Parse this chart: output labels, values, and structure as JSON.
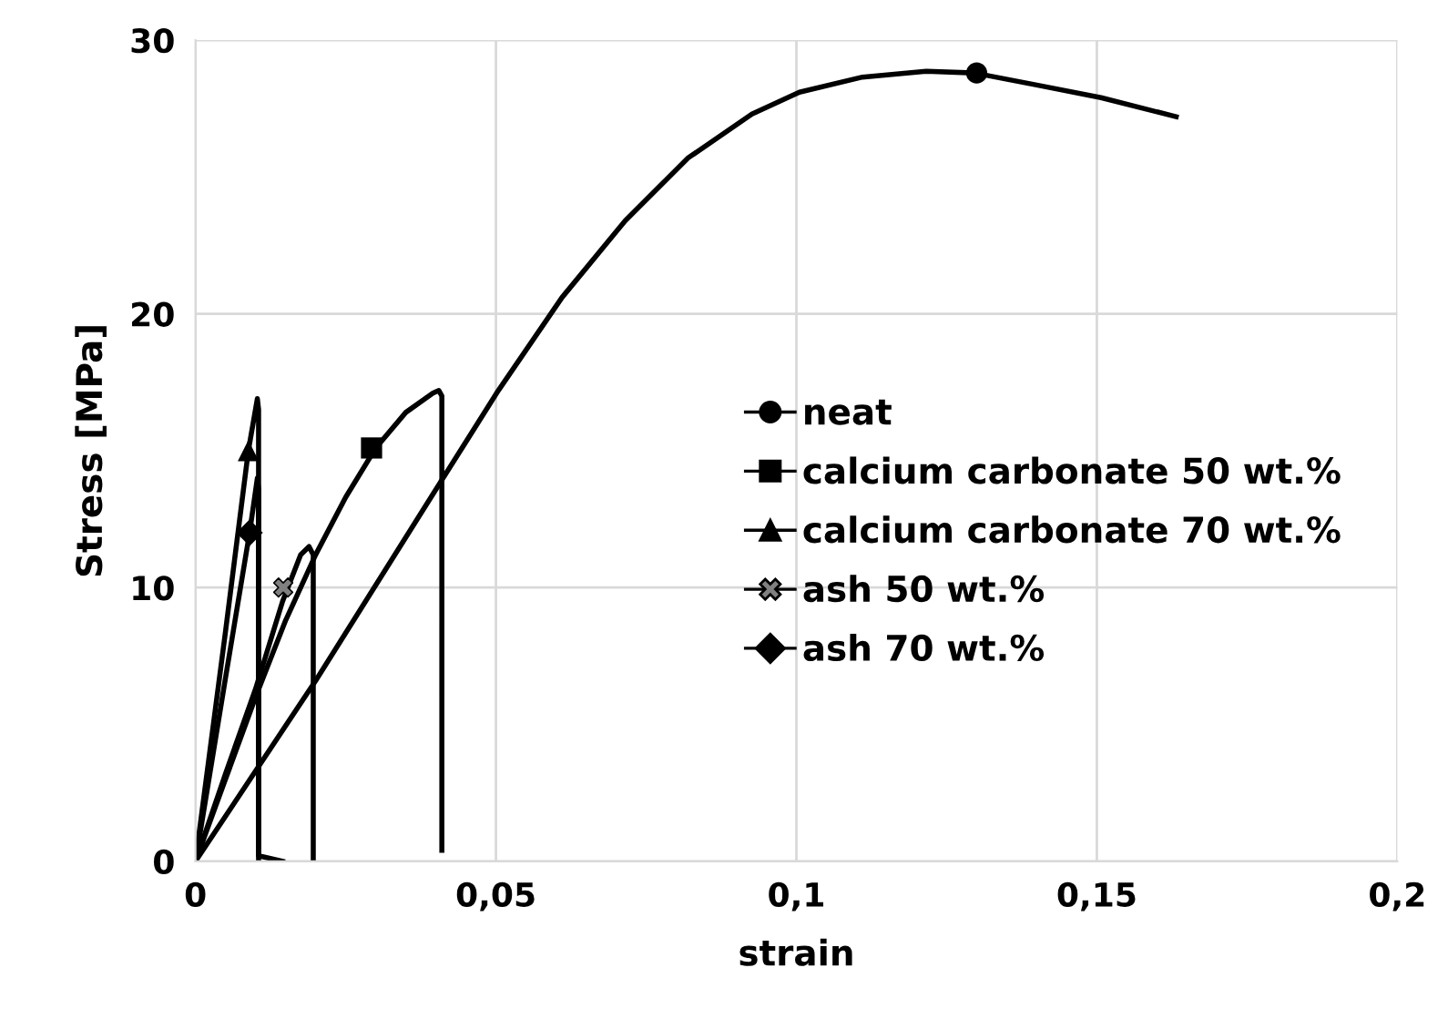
{
  "chart_data": {
    "type": "line",
    "xlabel": "strain",
    "ylabel": "Stress [MPa]",
    "xlim": [
      0,
      0.2
    ],
    "ylim": [
      0,
      30
    ],
    "xticks": [
      {
        "value": 0,
        "label": "0"
      },
      {
        "value": 0.05,
        "label": "0,05"
      },
      {
        "value": 0.1,
        "label": "0,1"
      },
      {
        "value": 0.15,
        "label": "0,15"
      },
      {
        "value": 0.2,
        "label": "0,2"
      }
    ],
    "yticks": [
      0,
      10,
      20,
      30
    ],
    "grid": true,
    "legend": "right",
    "line_style": "solid",
    "series": [
      {
        "name": "neat",
        "color": "#000000",
        "x": [
          0,
          0.02,
          0.0412,
          0.0504,
          0.061,
          0.0715,
          0.082,
          0.0926,
          0.1005,
          0.111,
          0.1216,
          0.1296,
          0.14,
          0.1507,
          0.1632
        ],
        "values": [
          0,
          6.6,
          14.0,
          17.2,
          20.6,
          23.4,
          25.7,
          27.3,
          28.1,
          28.65,
          28.86,
          28.8,
          28.36,
          27.9,
          27.2
        ]
      },
      {
        "name": "calcium carbonate 50 wt.%",
        "color": "#000000",
        "x": [
          0,
          0.005,
          0.01,
          0.015,
          0.02,
          0.025,
          0.03,
          0.035,
          0.0395,
          0.0405,
          0.041,
          0.041
        ],
        "values": [
          0,
          3.0,
          6.0,
          8.8,
          11.2,
          13.3,
          15.1,
          16.4,
          17.1,
          17.2,
          17.0,
          0.4
        ]
      },
      {
        "name": "calcium carbonate 70 wt.%",
        "color": "#000000",
        "x": [
          0,
          0.005,
          0.0088,
          0.0103,
          0.0105,
          0.0105
        ],
        "values": [
          0,
          8.4,
          15.0,
          16.9,
          16.5,
          0
        ]
      },
      {
        "name": "ash 50 wt.%",
        "color": "#000000",
        "x": [
          0,
          0.005,
          0.01,
          0.0145,
          0.0175,
          0.0189,
          0.0196,
          0.0196
        ],
        "values": [
          0,
          3.2,
          6.3,
          9.5,
          11.2,
          11.5,
          11.2,
          0
        ]
      },
      {
        "name": "ash 70 wt.%",
        "color": "#000000",
        "x": [
          0,
          0.005,
          0.009,
          0.0103,
          0.0105,
          0.0105,
          0.0145
        ],
        "values": [
          0,
          6.7,
          12.0,
          14.0,
          13.6,
          0.2,
          0
        ]
      },
      {
        "type": "scatter",
        "marker": "circle",
        "color": "#000000",
        "x": [
          0.13
        ],
        "values": [
          28.8
        ]
      },
      {
        "type": "scatter",
        "marker": "square",
        "color": "#000000",
        "x": [
          0.0293
        ],
        "values": [
          15.1
        ]
      },
      {
        "type": "scatter",
        "marker": "triangle",
        "color": "#000000",
        "x": [
          0.0088
        ],
        "values": [
          15.0
        ]
      },
      {
        "type": "scatter",
        "marker": "cross",
        "color": "#808080",
        "x": [
          0.0146
        ],
        "values": [
          10.0
        ]
      },
      {
        "type": "scatter",
        "marker": "diamond",
        "color": "#000000",
        "x": [
          0.009
        ],
        "values": [
          12.0
        ]
      }
    ]
  }
}
